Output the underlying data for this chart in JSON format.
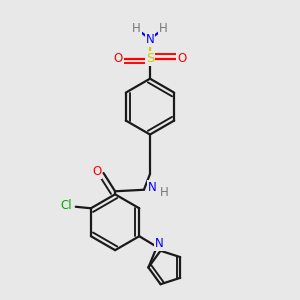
{
  "bg_color": "#e8e8e8",
  "bond_color": "#1a1a1a",
  "bond_width": 1.6,
  "atom_colors": {
    "N": "#0000ff",
    "O": "#ff0000",
    "S": "#cccc00",
    "Cl": "#00aa00",
    "H": "#777777",
    "C": "#1a1a1a"
  },
  "font_size": 8.5,
  "fig_size": [
    3.0,
    3.0
  ],
  "dpi": 100
}
